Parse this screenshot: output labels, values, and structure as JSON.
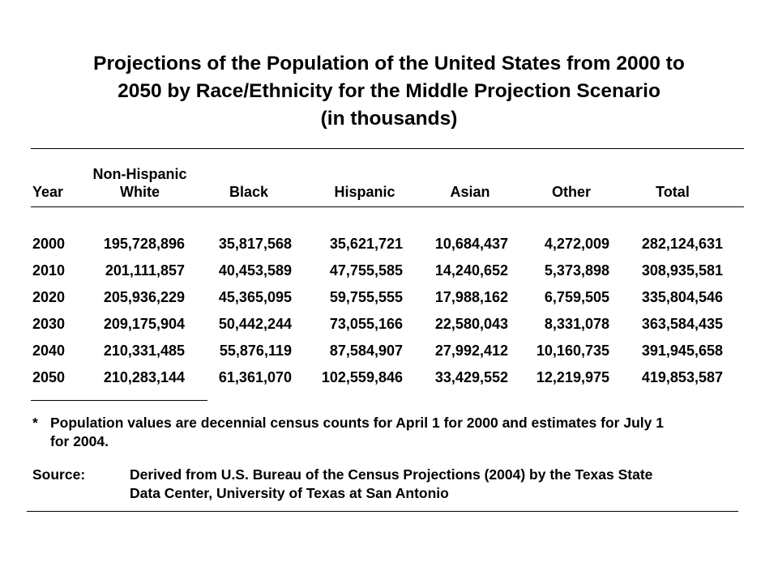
{
  "title": {
    "line1": "Projections of the Population of the United States from 2000 to",
    "line2": "2050 by Race/Ethnicity for the Middle Projection Scenario",
    "line3": "(in thousands)"
  },
  "table": {
    "headers": {
      "year": "Year",
      "nhw_line1": "Non-Hispanic",
      "nhw_line2": "White",
      "black": "Black",
      "hispanic": "Hispanic",
      "asian": "Asian",
      "other": "Other",
      "total": "Total"
    },
    "rows": [
      [
        "2000",
        "195,728,896",
        "35,817,568",
        "35,621,721",
        "10,684,437",
        "4,272,009",
        "282,124,631"
      ],
      [
        "2010",
        "201,111,857",
        "40,453,589",
        "47,755,585",
        "14,240,652",
        "5,373,898",
        "308,935,581"
      ],
      [
        "2020",
        "205,936,229",
        "45,365,095",
        "59,755,555",
        "17,988,162",
        "6,759,505",
        "335,804,546"
      ],
      [
        "2030",
        "209,175,904",
        "50,442,244",
        "73,055,166",
        "22,580,043",
        "8,331,078",
        "363,584,435"
      ],
      [
        "2040",
        "210,331,485",
        "55,876,119",
        "87,584,907",
        "27,992,412",
        "10,160,735",
        "391,945,658"
      ],
      [
        "2050",
        "210,283,144",
        "61,361,070",
        "102,559,846",
        "33,429,552",
        "12,219,975",
        "419,853,587"
      ]
    ]
  },
  "footnote": {
    "marker": "*",
    "line1": "Population values are decennial census counts for April 1 for 2000 and estimates for July 1",
    "line2": "for 2004."
  },
  "source": {
    "label": "Source:",
    "line1": "Derived from U.S. Bureau of the Census Projections (2004) by the Texas State",
    "line2": "Data Center, University of Texas at San Antonio"
  }
}
